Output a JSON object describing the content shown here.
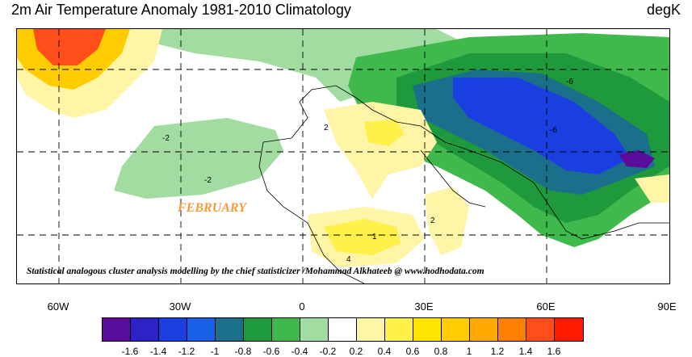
{
  "title_left": "2m Air Temperature Anomaly  1981-2010 Climatology",
  "title_right": "degK",
  "watermark_month": "FEBRUARY",
  "credit": "Statistical analogous cluster analysis modelling by the chief statisticizer /Mohammad Alkhateeb @ www.hodhodata.com",
  "longitude_ticks": [
    "60W",
    "30W",
    "0",
    "30E",
    "60E",
    "90E"
  ],
  "contour_labels": [
    "-6",
    "-2",
    "-2",
    "-6",
    "2",
    "4",
    "2",
    "1"
  ],
  "colorbar": {
    "labels": [
      "-1.6",
      "-1.4",
      "-1.2",
      "-1",
      "-0.8",
      "-0.6",
      "-0.4",
      "-0.2",
      "0.2",
      "0.4",
      "0.6",
      "0.8",
      "1",
      "1.2",
      "1.4",
      "1.6"
    ],
    "colors": [
      "#5a0d9c",
      "#2b22c8",
      "#1a3fe0",
      "#1860e8",
      "#1a6f8a",
      "#1e9a3c",
      "#3fb84c",
      "#a2dca0",
      "#ffffff",
      "#fff5a6",
      "#fff04a",
      "#ffe600",
      "#ffcc00",
      "#ffa800",
      "#ff8000",
      "#ff4e1a",
      "#ff1a00"
    ]
  },
  "anomaly_regions": [
    {
      "name": "greenland-warm",
      "color": "#ff1a00"
    },
    {
      "name": "siberia-cold",
      "color": "#1a3fe0"
    },
    {
      "name": "himalaya-cold",
      "color": "#5a0d9c"
    },
    {
      "name": "sahara-warm",
      "color": "#fff04a"
    }
  ]
}
